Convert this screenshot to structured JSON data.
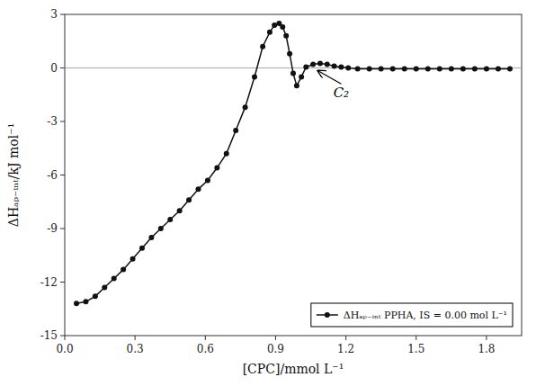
{
  "chart_data": {
    "type": "line",
    "x": [
      0.05,
      0.09,
      0.13,
      0.17,
      0.21,
      0.25,
      0.29,
      0.33,
      0.37,
      0.41,
      0.45,
      0.49,
      0.53,
      0.57,
      0.61,
      0.65,
      0.69,
      0.73,
      0.77,
      0.81,
      0.845,
      0.875,
      0.895,
      0.915,
      0.93,
      0.945,
      0.96,
      0.975,
      0.99,
      1.01,
      1.03,
      1.06,
      1.09,
      1.12,
      1.15,
      1.18,
      1.21,
      1.25,
      1.3,
      1.35,
      1.4,
      1.45,
      1.5,
      1.55,
      1.6,
      1.65,
      1.7,
      1.75,
      1.8,
      1.85,
      1.9
    ],
    "series": [
      {
        "name": "ΔHₐₚ₋ᵢₙₜ PPHA, IS = 0.00 mol L⁻¹",
        "color": "#111111",
        "marker": "circle",
        "values": [
          -13.2,
          -13.1,
          -12.8,
          -12.3,
          -11.8,
          -11.3,
          -10.7,
          -10.1,
          -9.5,
          -9.0,
          -8.5,
          -8.0,
          -7.4,
          -6.8,
          -6.3,
          -5.6,
          -4.8,
          -3.5,
          -2.2,
          -0.5,
          1.2,
          2.0,
          2.4,
          2.5,
          2.3,
          1.8,
          0.8,
          -0.3,
          -1.0,
          -0.5,
          0.05,
          0.2,
          0.25,
          0.2,
          0.1,
          0.05,
          0.0,
          -0.05,
          -0.05,
          -0.05,
          -0.05,
          -0.05,
          -0.05,
          -0.05,
          -0.05,
          -0.05,
          -0.05,
          -0.05,
          -0.05,
          -0.05,
          -0.05
        ]
      }
    ],
    "x_label": "[CPC]/mmol L⁻¹",
    "y_label": "ΔHₐₚ₋ᵢₙₜ/kJ mol⁻¹",
    "xlim": [
      0.0,
      1.95
    ],
    "ylim": [
      -15,
      3
    ],
    "xticks": [
      {
        "value": 0.0,
        "label": "0.0"
      },
      0.3,
      0.6,
      0.9,
      1.2,
      1.5,
      1.8
    ],
    "yticks": [
      -15,
      -12,
      -9,
      -6,
      -3,
      0,
      3
    ],
    "hline": 0,
    "annotations": [
      {
        "text": "C₂",
        "x": 1.08,
        "y": -0.15,
        "text_x": 1.18,
        "text_y": -0.9
      }
    ],
    "legend": "lower right",
    "grid": false
  }
}
